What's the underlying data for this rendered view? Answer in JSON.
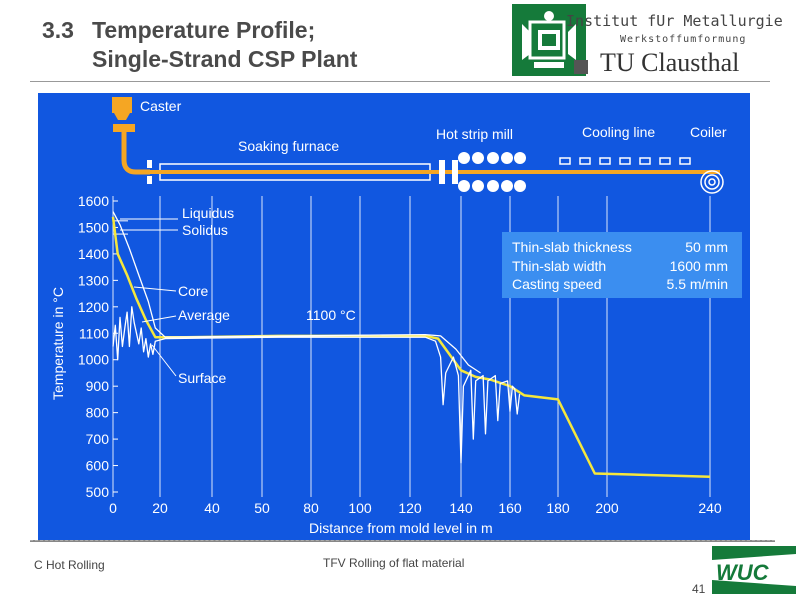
{
  "slide": {
    "number_label": "3.3",
    "title_line1": "Temperature Profile;",
    "title_line2": "Single-Strand CSP Plant",
    "institute_line": "Institut fUr Metallurgie",
    "institute_sub": "Werkstoffumformung",
    "university": "TU Clausthal",
    "footer_left": "C Hot Rolling",
    "footer_center": "TFV Rolling of flat material",
    "page_number": "41",
    "footer_logo_text": "WUC",
    "colors": {
      "panel": "#1157e0",
      "accent": "#f5e73c",
      "logo_green": "#157a3a"
    }
  },
  "plant": {
    "caster": "Caster",
    "soaking_furnace": "Soaking furnace",
    "hot_strip_mill": "Hot strip mill",
    "cooling_line": "Cooling line",
    "coiler": "Coiler"
  },
  "info_box": {
    "rows": [
      {
        "label": "Thin-slab thickness",
        "value": "50 mm"
      },
      {
        "label": "Thin-slab width",
        "value": "1600 mm"
      },
      {
        "label": "Casting speed",
        "value": "5.5 m/min"
      }
    ]
  },
  "chart_data": {
    "type": "line",
    "title": "Temperature Profile; Single-Strand CSP Plant",
    "xlabel": "Distance from mold level in m",
    "ylabel": "Temperature in °C",
    "xlim": [
      0,
      240
    ],
    "ylim": [
      500,
      1600
    ],
    "x_ticks": [
      0,
      20,
      40,
      50,
      80,
      100,
      120,
      140,
      160,
      180,
      200,
      240
    ],
    "y_ticks": [
      500,
      600,
      700,
      800,
      900,
      1000,
      1100,
      1200,
      1300,
      1400,
      1500,
      1600
    ],
    "reference_lines": [
      {
        "name": "Liquidus",
        "value": 1525
      },
      {
        "name": "Solidus",
        "value": 1475
      }
    ],
    "annotations": [
      {
        "text": "Liquidus"
      },
      {
        "text": "Solidus"
      },
      {
        "text": "Core"
      },
      {
        "text": "Average"
      },
      {
        "text": "Surface"
      },
      {
        "text": "1100 °C"
      }
    ],
    "series": [
      {
        "name": "Average",
        "color": "#f5e73c",
        "points": [
          [
            0,
            1540
          ],
          [
            2,
            1400
          ],
          [
            6,
            1320
          ],
          [
            10,
            1230
          ],
          [
            14,
            1150
          ],
          [
            18,
            1085
          ],
          [
            30,
            1085
          ],
          [
            60,
            1090
          ],
          [
            100,
            1090
          ],
          [
            126,
            1090
          ],
          [
            131,
            1080
          ],
          [
            134,
            1040
          ],
          [
            140,
            960
          ],
          [
            146,
            935
          ],
          [
            152,
            925
          ],
          [
            160,
            900
          ],
          [
            166,
            865
          ],
          [
            180,
            850
          ],
          [
            195,
            570
          ],
          [
            240,
            558
          ]
        ]
      },
      {
        "name": "Core",
        "color": "#ffffff",
        "points": [
          [
            0,
            1560
          ],
          [
            3,
            1510
          ],
          [
            7,
            1420
          ],
          [
            11,
            1320
          ],
          [
            15,
            1220
          ],
          [
            18,
            1120
          ],
          [
            22,
            1085
          ],
          [
            126,
            1095
          ],
          [
            132,
            1090
          ],
          [
            138,
            1040
          ],
          [
            143,
            980
          ],
          [
            148,
            950
          ]
        ]
      },
      {
        "name": "Surface",
        "color": "#ffffff",
        "points": [
          [
            0,
            1050
          ],
          [
            1,
            1130
          ],
          [
            2,
            1000
          ],
          [
            3,
            1160
          ],
          [
            4,
            1050
          ],
          [
            5,
            1120
          ],
          [
            6,
            1180
          ],
          [
            7,
            1050
          ],
          [
            8,
            1200
          ],
          [
            9,
            1140
          ],
          [
            10,
            1100
          ],
          [
            11,
            1060
          ],
          [
            12,
            1120
          ],
          [
            13,
            1030
          ],
          [
            14,
            1080
          ],
          [
            15,
            1010
          ],
          [
            16,
            1060
          ],
          [
            17,
            1020
          ],
          [
            18,
            1070
          ],
          [
            22,
            1080
          ],
          [
            60,
            1085
          ],
          [
            126,
            1085
          ],
          [
            130,
            1070
          ],
          [
            132,
            1010
          ],
          [
            133,
            830
          ],
          [
            134,
            950
          ],
          [
            137,
            1010
          ],
          [
            139,
            940
          ],
          [
            140,
            610
          ],
          [
            141,
            900
          ],
          [
            144,
            960
          ],
          [
            145,
            700
          ],
          [
            146,
            920
          ],
          [
            149,
            940
          ],
          [
            150,
            720
          ],
          [
            151,
            920
          ],
          [
            154,
            940
          ],
          [
            155,
            770
          ],
          [
            156,
            910
          ],
          [
            159,
            920
          ],
          [
            160,
            805
          ],
          [
            161,
            900
          ],
          [
            162,
            890
          ],
          [
            163,
            795
          ],
          [
            164,
            870
          ]
        ]
      }
    ]
  }
}
